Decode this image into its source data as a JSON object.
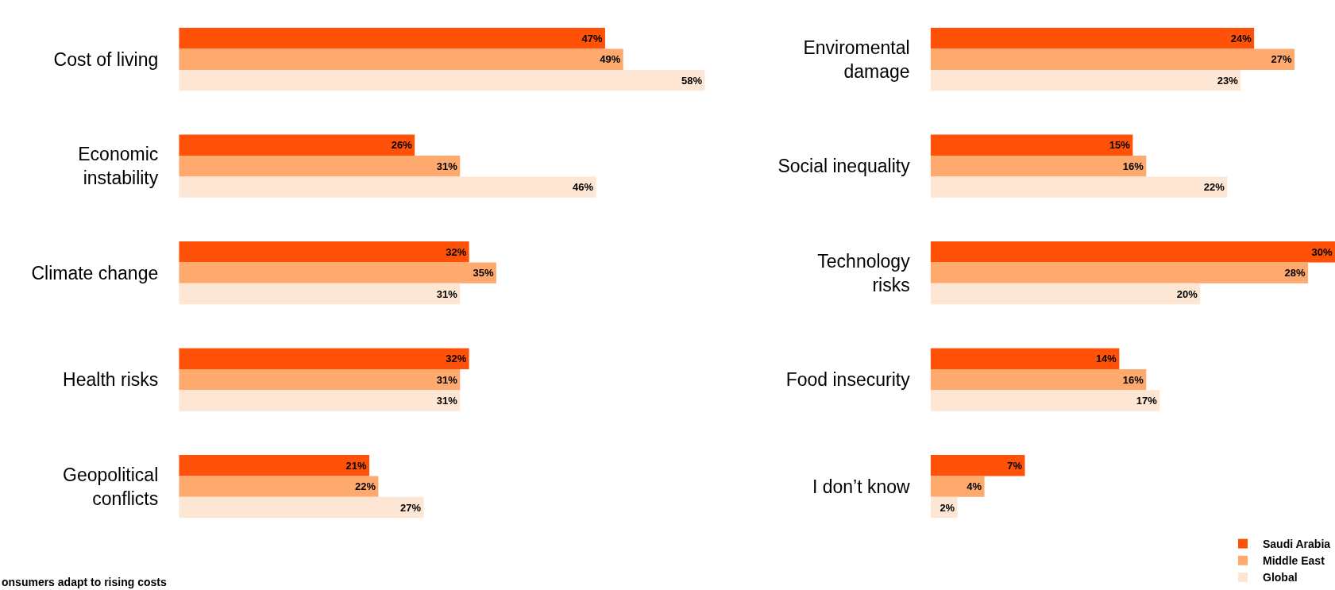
{
  "chart_data": [
    {
      "type": "bar",
      "orientation": "horizontal",
      "categories": [
        "Cost of living",
        "Economic\ninstability",
        "Climate change",
        "Health risks",
        "Geopolitical\nconflicts"
      ],
      "series": [
        {
          "color": "#ff5208",
          "values": [
            47,
            26,
            32,
            32,
            21
          ],
          "value_labels": [
            "47%",
            "26%",
            "32%",
            "32%",
            "21%"
          ]
        },
        {
          "color": "#fea96e",
          "values": [
            49,
            31,
            35,
            31,
            22
          ],
          "value_labels": [
            "49%",
            "31%",
            "35%",
            "31%",
            "22%"
          ]
        },
        {
          "color": "#fde6d3",
          "values": [
            58,
            46,
            31,
            31,
            27
          ],
          "value_labels": [
            "58%",
            "46%",
            "31%",
            "31%",
            "27%"
          ]
        }
      ],
      "xlim": [
        0,
        58
      ],
      "tick_labels": "y",
      "annotations": [
        "onsumers adapt to rising costs"
      ]
    },
    {
      "type": "bar",
      "orientation": "horizontal",
      "categories": [
        "Enviromental\ndamage",
        "Social inequality",
        "Technology\nrisks",
        "Food insecurity",
        "I don’t know"
      ],
      "series": [
        {
          "name": "Saudi Arabia",
          "color": "#ff5208",
          "values": [
            24,
            15,
            30,
            14,
            7
          ],
          "value_labels": [
            "24%",
            "15%",
            "30%",
            "14%",
            "7%"
          ]
        },
        {
          "name": "Middle East",
          "color": "#fea96e",
          "values": [
            27,
            16,
            28,
            16,
            4
          ],
          "value_labels": [
            "27%",
            "16%",
            "28%",
            "16%",
            "4%"
          ]
        },
        {
          "name": "Global",
          "color": "#fde6d3",
          "values": [
            23,
            22,
            20,
            17,
            2
          ],
          "value_labels": [
            "23%",
            "22%",
            "20%",
            "17%",
            "2%"
          ]
        }
      ],
      "xlim": [
        0,
        30
      ],
      "tick_labels": "y",
      "legend": "bottom right"
    }
  ]
}
